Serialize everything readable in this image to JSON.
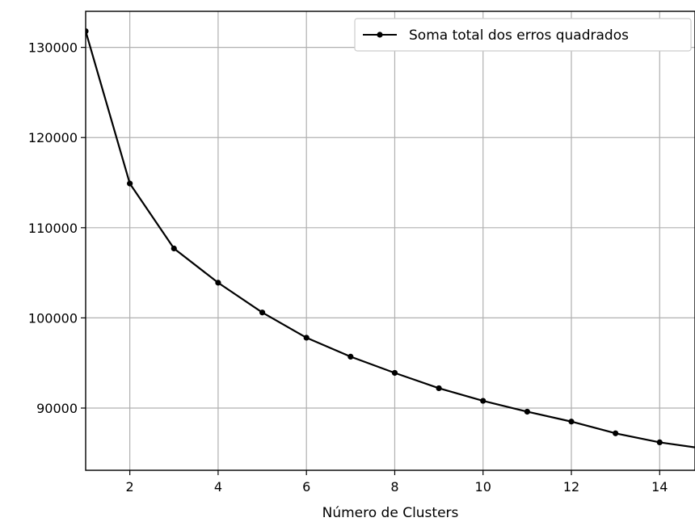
{
  "chart_data": {
    "type": "line",
    "xlabel": "Número de Clusters",
    "ylabel": "",
    "xlim": [
      1,
      14.8
    ],
    "ylim": [
      83100,
      134000
    ],
    "xticks": [
      2,
      4,
      6,
      8,
      10,
      12,
      14
    ],
    "yticks": [
      90000,
      100000,
      110000,
      120000,
      130000
    ],
    "grid": true,
    "legend_position": "top-right",
    "series": [
      {
        "name": "Soma total dos erros quadrados",
        "color": "#000000",
        "marker": "circle",
        "x": [
          1,
          2,
          3,
          4,
          5,
          6,
          7,
          8,
          9,
          10,
          11,
          12,
          13,
          14,
          15
        ],
        "y": [
          131800,
          114900,
          107700,
          103900,
          100600,
          97800,
          95700,
          93900,
          92200,
          90800,
          89600,
          88500,
          87200,
          86200,
          85500
        ]
      }
    ]
  }
}
